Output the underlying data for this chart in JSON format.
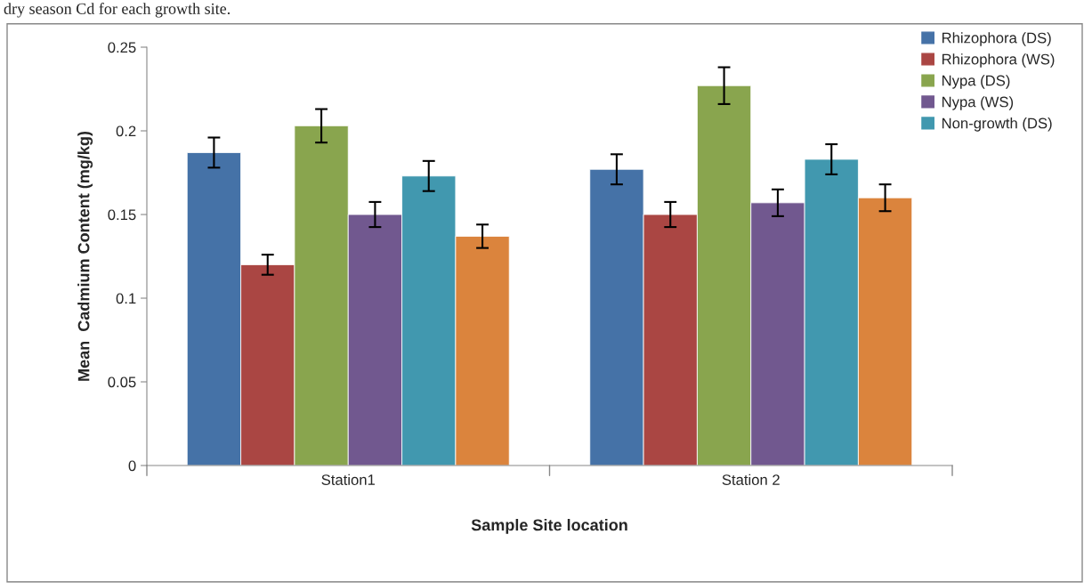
{
  "chart_data": {
    "type": "bar",
    "xlabel": "Sample Site location",
    "ylabel": "Mean  Cadmium Content (mg/kg)",
    "annotations": [
      "dry season Cd for each growth site."
    ],
    "categories": [
      "Station1",
      "Station 2"
    ],
    "series": [
      {
        "name": "Rhizophora (DS)",
        "color": "#4572a7",
        "values": [
          0.187,
          0.177
        ],
        "errors": [
          0.009,
          0.009
        ]
      },
      {
        "name": "Rhizophora (WS)",
        "color": "#aa4643",
        "values": [
          0.12,
          0.15
        ],
        "errors": [
          0.006,
          0.0075
        ]
      },
      {
        "name": "Nypa (DS)",
        "color": "#89a54e",
        "values": [
          0.203,
          0.227
        ],
        "errors": [
          0.01,
          0.011
        ]
      },
      {
        "name": "Nypa (WS)",
        "color": "#71588f",
        "values": [
          0.15,
          0.157
        ],
        "errors": [
          0.0075,
          0.008
        ]
      },
      {
        "name": "Non-growth (DS)",
        "color": "#4198af",
        "values": [
          0.173,
          0.183
        ],
        "errors": [
          0.009,
          0.009
        ]
      },
      {
        "color": "#db843d",
        "values": [
          0.137,
          0.16
        ],
        "errors": [
          0.007,
          0.008
        ]
      }
    ],
    "ylim": [
      0,
      0.25
    ],
    "yticks": [
      0,
      0.05,
      0.1,
      0.15,
      0.2,
      0.25
    ],
    "grid": false,
    "legend": "top right"
  }
}
